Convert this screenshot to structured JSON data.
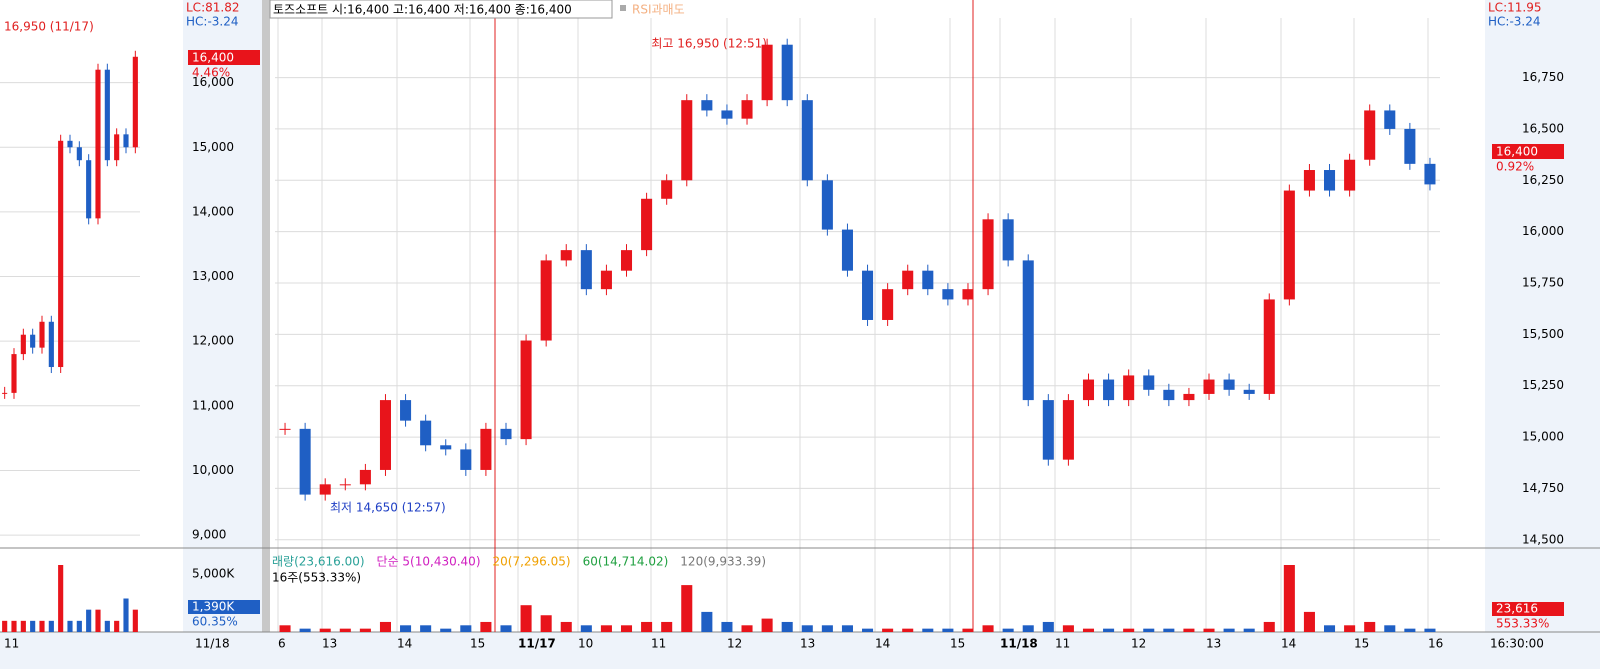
{
  "chart_data": {
    "type": "candle",
    "header": "토즈소프트 시:16,400 고:16,400 저:16,400 종:16,400",
    "rsi_label": "RSI과매도",
    "high_note": "최고 16,950 (12:51)",
    "low_note": "최저 14,650 (12:57)",
    "lc": "LC:11.95",
    "hc": "HC:-3.24",
    "price_tag": "16,400",
    "change": "0.92%",
    "ylim": [
      14460,
      17040
    ],
    "yticks": [
      {
        "value": 14500,
        "label": "14,500"
      },
      {
        "value": 14750,
        "label": "14,750"
      },
      {
        "value": 15000,
        "label": "15,000"
      },
      {
        "value": 15250,
        "label": "15,250"
      },
      {
        "value": 15500,
        "label": "15,500"
      },
      {
        "value": 15750,
        "label": "15,750"
      },
      {
        "value": 16000,
        "label": "16,000"
      },
      {
        "value": 16250,
        "label": "16,250"
      },
      {
        "value": 16500,
        "label": "16,500"
      },
      {
        "value": 16750,
        "label": "16,750"
      }
    ],
    "values": [
      15040,
      14720,
      14770,
      14770,
      14840,
      15180,
      15080,
      14960,
      14940,
      14840,
      15040,
      14990,
      15470,
      15860,
      15910,
      15720,
      15810,
      15910,
      16160,
      16250,
      16640,
      16590,
      16550,
      16640,
      16910,
      16640,
      16250,
      16010,
      15810,
      15570,
      15720,
      15810,
      15720,
      15670,
      15720,
      16060,
      15860,
      15180,
      14890,
      15180,
      15280,
      15180,
      15300,
      15230,
      15180,
      15210,
      15280,
      15230,
      15210,
      15670,
      16200,
      16300,
      16200,
      16350,
      16590,
      16500,
      16330,
      16230
    ],
    "volume": [
      2,
      1,
      1,
      1,
      1,
      3,
      2,
      2,
      1,
      2,
      3,
      2,
      8,
      5,
      3,
      2,
      2,
      2,
      3,
      3,
      14,
      6,
      3,
      2,
      4,
      3,
      2,
      2,
      2,
      1,
      1,
      1,
      1,
      1,
      1,
      2,
      1,
      2,
      3,
      2,
      1,
      1,
      1,
      1,
      1,
      1,
      1,
      1,
      1,
      3,
      20,
      6,
      2,
      2,
      3,
      2,
      1,
      1
    ],
    "volume_legend": [
      "래량(23,616.00)",
      "단순 5(10,430.40)",
      "20(7,296.05)",
      "60(14,714.02)",
      "120(9,933.39)"
    ],
    "volume_sub": "16주(553.33%)",
    "volume_tag": "23,616",
    "volume_pct": "553.33%",
    "x_labels": [
      "6",
      "13",
      "14",
      "15",
      "11/17",
      "10",
      "11",
      "12",
      "13",
      "14",
      "15",
      "11/18",
      "11",
      "12",
      "13",
      "14",
      "15",
      "16"
    ],
    "time": "16:30:00",
    "daily": {
      "note": "16,950 (11/17)",
      "lc": "LC:81.82",
      "hc": "HC:-3.24",
      "price_tag": "16,400",
      "change": "4.46%",
      "ylim": [
        8800,
        17000
      ],
      "yticks": [
        {
          "value": 9000,
          "label": "9,000"
        },
        {
          "value": 10000,
          "label": "10,000"
        },
        {
          "value": 11000,
          "label": "11,000"
        },
        {
          "value": 12000,
          "label": "12,000"
        },
        {
          "value": 13000,
          "label": "13,000"
        },
        {
          "value": 14000,
          "label": "14,000"
        },
        {
          "value": 15000,
          "label": "15,000"
        },
        {
          "value": 16000,
          "label": "16,000"
        }
      ],
      "values": [
        11200,
        11800,
        12100,
        11900,
        12300,
        11600,
        15100,
        15000,
        14800,
        13900,
        16200,
        14800,
        15200,
        15000,
        16400
      ],
      "volume": [
        1,
        1,
        1,
        1,
        1,
        1,
        6,
        1,
        1,
        2,
        2,
        1,
        1,
        3,
        2
      ],
      "volume_tick": "5,000K",
      "volume_tag": "1,390K",
      "volume_pct": "60.35%",
      "x_labels": [
        "11",
        "11/18"
      ]
    }
  }
}
